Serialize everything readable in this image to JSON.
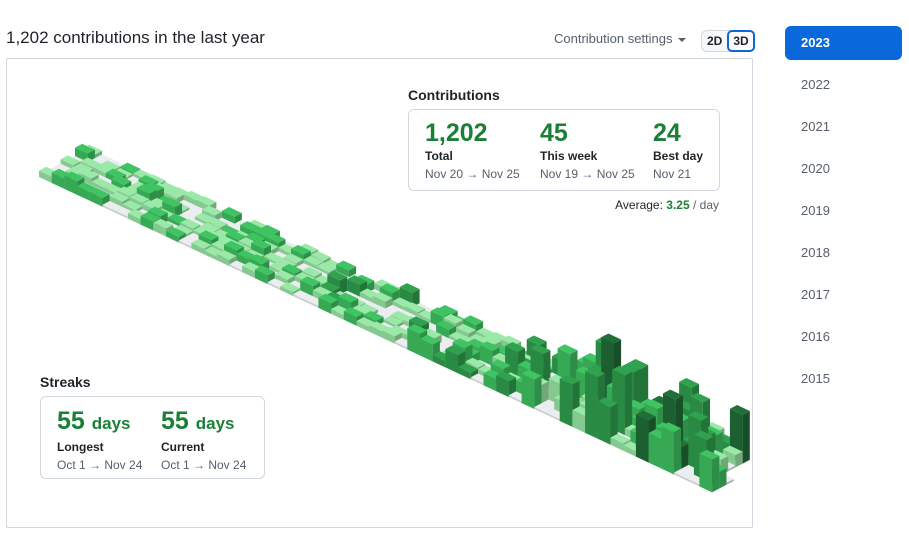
{
  "header": {
    "title": "1,202 contributions in the last year",
    "settings_label": "Contribution settings",
    "view_toggle": [
      "2D",
      "3D"
    ],
    "active_view": "3D"
  },
  "contributions": {
    "title": "Contributions",
    "total": {
      "value": "1,202",
      "label": "Total",
      "range": "Nov 20 → Nov 25"
    },
    "week": {
      "value": "45",
      "label": "This week",
      "range": "Nov 19 → Nov 25"
    },
    "best": {
      "value": "24",
      "label": "Best day",
      "range": "Nov 21"
    },
    "average_label": "Average:",
    "average_value": "3.25",
    "average_unit": "/ day"
  },
  "streaks": {
    "title": "Streaks",
    "longest": {
      "value": "55",
      "unit": "days",
      "label": "Longest",
      "range": "Oct 1 → Nov 24"
    },
    "current": {
      "value": "55",
      "unit": "days",
      "label": "Current",
      "range": "Oct 1 → Nov 24"
    }
  },
  "years": {
    "items": [
      "2023",
      "2022",
      "2021",
      "2020",
      "2019",
      "2018",
      "2017",
      "2016",
      "2015"
    ],
    "active": "2023"
  },
  "colors": {
    "accent": "#0969da",
    "green": "#1a7f37",
    "levels": [
      "#ebedf0",
      "#9be9a8",
      "#40c463",
      "#30a14e",
      "#216e39"
    ]
  }
}
